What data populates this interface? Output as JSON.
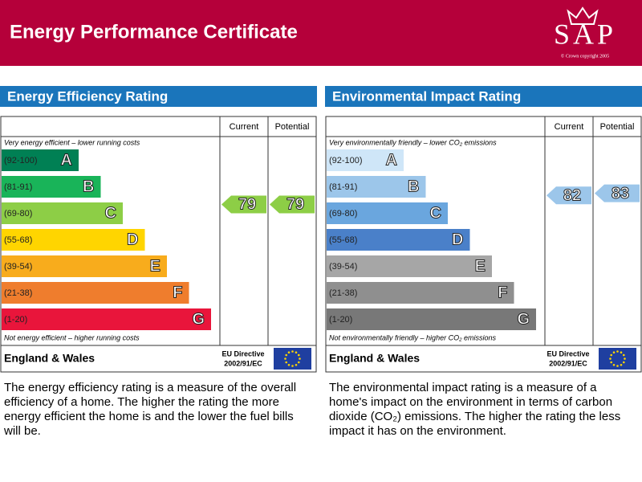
{
  "header": {
    "title": "Energy Performance Certificate",
    "logo": "SAP",
    "logo_note": "© Crown copyright 2005"
  },
  "panels": [
    {
      "title": "Energy Efficiency Rating",
      "columns": [
        "Current",
        "Potential"
      ],
      "top_note": "Very energy efficient – lower running costs",
      "bottom_note": "Not energy efficient – higher running costs",
      "bands": [
        {
          "range": "(92-100)",
          "letter": "A",
          "color": "#008054"
        },
        {
          "range": "(81-91)",
          "letter": "B",
          "color": "#19b459"
        },
        {
          "range": "(69-80)",
          "letter": "C",
          "color": "#8dce46"
        },
        {
          "range": "(55-68)",
          "letter": "D",
          "color": "#ffd500"
        },
        {
          "range": "(39-54)",
          "letter": "E",
          "color": "#f8ac1c"
        },
        {
          "range": "(21-38)",
          "letter": "F",
          "color": "#ef7d2d"
        },
        {
          "range": "(1-20)",
          "letter": "G",
          "color": "#e9153b"
        }
      ],
      "current": 79,
      "potential": 79,
      "region": "England & Wales",
      "directive": [
        "EU Directive",
        "2002/91/EC"
      ],
      "description": "The energy efficiency rating is a measure of the overall efficiency of a home. The higher the rating the more energy efficient the home is and the lower the fuel bills will be."
    },
    {
      "title": "Environmental Impact Rating",
      "columns": [
        "Current",
        "Potential"
      ],
      "top_note": "Very environmentally friendly – lower CO₂ emissions",
      "bottom_note": "Not environmentally friendly – higher CO₂ emissions",
      "bands": [
        {
          "range": "(92-100)",
          "letter": "A",
          "color": "#cfe6f8"
        },
        {
          "range": "(81-91)",
          "letter": "B",
          "color": "#9cc6ea"
        },
        {
          "range": "(69-80)",
          "letter": "C",
          "color": "#6aa6de"
        },
        {
          "range": "(55-68)",
          "letter": "D",
          "color": "#4a80c9"
        },
        {
          "range": "(39-54)",
          "letter": "E",
          "color": "#a6a6a6"
        },
        {
          "range": "(21-38)",
          "letter": "F",
          "color": "#8f8f8f"
        },
        {
          "range": "(1-20)",
          "letter": "G",
          "color": "#787878"
        }
      ],
      "current": 82,
      "potential": 83,
      "region": "England & Wales",
      "directive": [
        "EU Directive",
        "2002/91/EC"
      ],
      "description": "The environmental impact rating is a measure of a home's impact on the environment in terms of carbon dioxide (CO₂) emissions. The higher the rating the less impact it has on the environment."
    }
  ]
}
